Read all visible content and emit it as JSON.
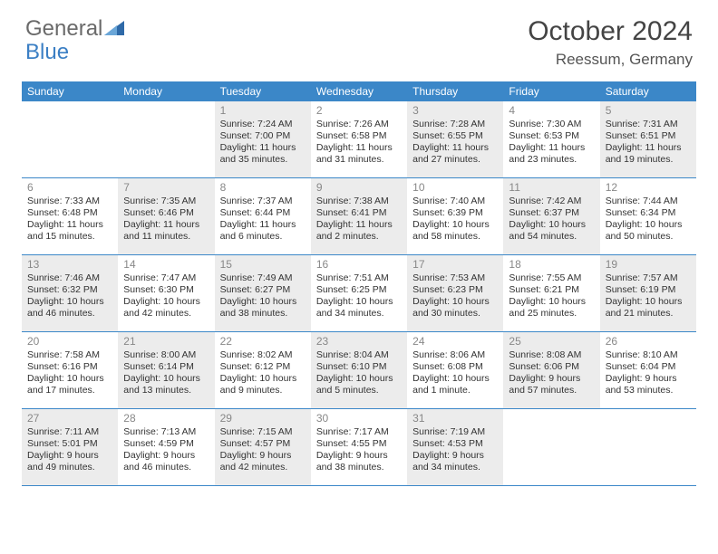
{
  "logo": {
    "text1": "General",
    "text2": "Blue",
    "tri_color": "#2f6aa8"
  },
  "title": "October 2024",
  "location": "Reessum, Germany",
  "colors": {
    "header_bg": "#3b87c8",
    "header_text": "#ffffff",
    "shaded_bg": "#ececec",
    "border": "#3b87c8",
    "daynum": "#888888",
    "body_text": "#333333"
  },
  "days_of_week": [
    "Sunday",
    "Monday",
    "Tuesday",
    "Wednesday",
    "Thursday",
    "Friday",
    "Saturday"
  ],
  "weeks": [
    [
      {
        "empty": true
      },
      {
        "empty": true
      },
      {
        "num": "1",
        "shaded": true,
        "sunrise": "7:24 AM",
        "sunset": "7:00 PM",
        "daylight": "11 hours and 35 minutes."
      },
      {
        "num": "2",
        "sunrise": "7:26 AM",
        "sunset": "6:58 PM",
        "daylight": "11 hours and 31 minutes."
      },
      {
        "num": "3",
        "shaded": true,
        "sunrise": "7:28 AM",
        "sunset": "6:55 PM",
        "daylight": "11 hours and 27 minutes."
      },
      {
        "num": "4",
        "sunrise": "7:30 AM",
        "sunset": "6:53 PM",
        "daylight": "11 hours and 23 minutes."
      },
      {
        "num": "5",
        "shaded": true,
        "sunrise": "7:31 AM",
        "sunset": "6:51 PM",
        "daylight": "11 hours and 19 minutes."
      }
    ],
    [
      {
        "num": "6",
        "sunrise": "7:33 AM",
        "sunset": "6:48 PM",
        "daylight": "11 hours and 15 minutes."
      },
      {
        "num": "7",
        "shaded": true,
        "sunrise": "7:35 AM",
        "sunset": "6:46 PM",
        "daylight": "11 hours and 11 minutes."
      },
      {
        "num": "8",
        "sunrise": "7:37 AM",
        "sunset": "6:44 PM",
        "daylight": "11 hours and 6 minutes."
      },
      {
        "num": "9",
        "shaded": true,
        "sunrise": "7:38 AM",
        "sunset": "6:41 PM",
        "daylight": "11 hours and 2 minutes."
      },
      {
        "num": "10",
        "sunrise": "7:40 AM",
        "sunset": "6:39 PM",
        "daylight": "10 hours and 58 minutes."
      },
      {
        "num": "11",
        "shaded": true,
        "sunrise": "7:42 AM",
        "sunset": "6:37 PM",
        "daylight": "10 hours and 54 minutes."
      },
      {
        "num": "12",
        "sunrise": "7:44 AM",
        "sunset": "6:34 PM",
        "daylight": "10 hours and 50 minutes."
      }
    ],
    [
      {
        "num": "13",
        "shaded": true,
        "sunrise": "7:46 AM",
        "sunset": "6:32 PM",
        "daylight": "10 hours and 46 minutes."
      },
      {
        "num": "14",
        "sunrise": "7:47 AM",
        "sunset": "6:30 PM",
        "daylight": "10 hours and 42 minutes."
      },
      {
        "num": "15",
        "shaded": true,
        "sunrise": "7:49 AM",
        "sunset": "6:27 PM",
        "daylight": "10 hours and 38 minutes."
      },
      {
        "num": "16",
        "sunrise": "7:51 AM",
        "sunset": "6:25 PM",
        "daylight": "10 hours and 34 minutes."
      },
      {
        "num": "17",
        "shaded": true,
        "sunrise": "7:53 AM",
        "sunset": "6:23 PM",
        "daylight": "10 hours and 30 minutes."
      },
      {
        "num": "18",
        "sunrise": "7:55 AM",
        "sunset": "6:21 PM",
        "daylight": "10 hours and 25 minutes."
      },
      {
        "num": "19",
        "shaded": true,
        "sunrise": "7:57 AM",
        "sunset": "6:19 PM",
        "daylight": "10 hours and 21 minutes."
      }
    ],
    [
      {
        "num": "20",
        "sunrise": "7:58 AM",
        "sunset": "6:16 PM",
        "daylight": "10 hours and 17 minutes."
      },
      {
        "num": "21",
        "shaded": true,
        "sunrise": "8:00 AM",
        "sunset": "6:14 PM",
        "daylight": "10 hours and 13 minutes."
      },
      {
        "num": "22",
        "sunrise": "8:02 AM",
        "sunset": "6:12 PM",
        "daylight": "10 hours and 9 minutes."
      },
      {
        "num": "23",
        "shaded": true,
        "sunrise": "8:04 AM",
        "sunset": "6:10 PM",
        "daylight": "10 hours and 5 minutes."
      },
      {
        "num": "24",
        "sunrise": "8:06 AM",
        "sunset": "6:08 PM",
        "daylight": "10 hours and 1 minute."
      },
      {
        "num": "25",
        "shaded": true,
        "sunrise": "8:08 AM",
        "sunset": "6:06 PM",
        "daylight": "9 hours and 57 minutes."
      },
      {
        "num": "26",
        "sunrise": "8:10 AM",
        "sunset": "6:04 PM",
        "daylight": "9 hours and 53 minutes."
      }
    ],
    [
      {
        "num": "27",
        "shaded": true,
        "sunrise": "7:11 AM",
        "sunset": "5:01 PM",
        "daylight": "9 hours and 49 minutes."
      },
      {
        "num": "28",
        "sunrise": "7:13 AM",
        "sunset": "4:59 PM",
        "daylight": "9 hours and 46 minutes."
      },
      {
        "num": "29",
        "shaded": true,
        "sunrise": "7:15 AM",
        "sunset": "4:57 PM",
        "daylight": "9 hours and 42 minutes."
      },
      {
        "num": "30",
        "sunrise": "7:17 AM",
        "sunset": "4:55 PM",
        "daylight": "9 hours and 38 minutes."
      },
      {
        "num": "31",
        "shaded": true,
        "sunrise": "7:19 AM",
        "sunset": "4:53 PM",
        "daylight": "9 hours and 34 minutes."
      },
      {
        "empty": true
      },
      {
        "empty": true
      }
    ]
  ],
  "labels": {
    "sunrise": "Sunrise:",
    "sunset": "Sunset:",
    "daylight": "Daylight:"
  }
}
